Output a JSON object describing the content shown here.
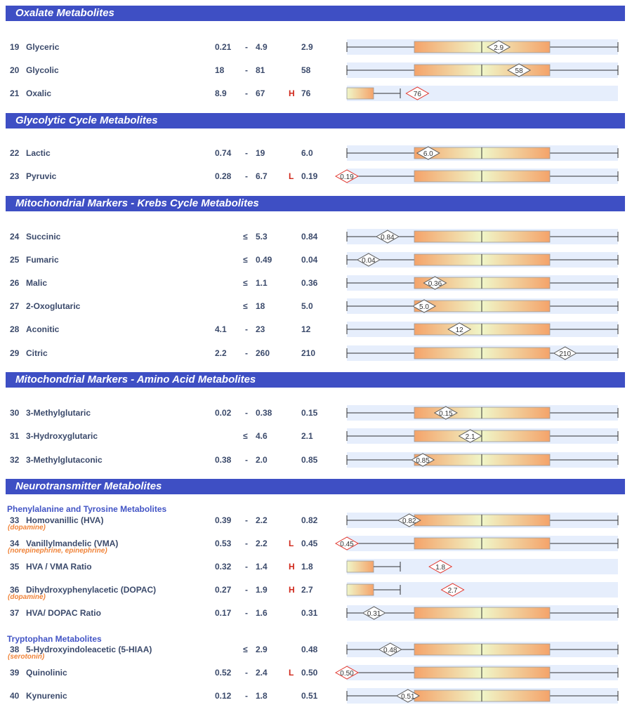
{
  "sections": [
    {
      "title": "Oxalate Metabolites",
      "rows": [
        {
          "num": "19",
          "name": "Glyceric",
          "low": "0.21",
          "sep": "-",
          "high": "4.9",
          "flag": "",
          "value": "2.9",
          "plot": {
            "whisker": "full",
            "val": 0.56
          }
        },
        {
          "num": "20",
          "name": "Glycolic",
          "low": "18",
          "sep": "-",
          "high": "81",
          "flag": "",
          "value": "58",
          "plot": {
            "whisker": "full",
            "val": 0.635
          }
        },
        {
          "num": "21",
          "name": "Oxalic",
          "low": "8.9",
          "sep": "-",
          "high": "67",
          "flag": "H",
          "value": "76",
          "plot": {
            "whisker": "high",
            "val": 0.26
          }
        }
      ]
    },
    {
      "title": "Glycolytic Cycle Metabolites",
      "rows": [
        {
          "num": "22",
          "name": "Lactic",
          "low": "0.74",
          "sep": "-",
          "high": "19",
          "flag": "",
          "value": "6.0",
          "plot": {
            "whisker": "full",
            "val": 0.3
          }
        },
        {
          "num": "23",
          "name": "Pyruvic",
          "low": "0.28",
          "sep": "-",
          "high": "6.7",
          "flag": "L",
          "value": "0.19",
          "plot": {
            "whisker": "full",
            "val": 0.0
          }
        }
      ]
    },
    {
      "title": "Mitochondrial Markers - Krebs Cycle Metabolites",
      "rows": [
        {
          "num": "24",
          "name": "Succinic",
          "low": "",
          "sep": "≤",
          "high": "5.3",
          "flag": "",
          "value": "0.84",
          "plot": {
            "whisker": "full",
            "val": 0.15
          }
        },
        {
          "num": "25",
          "name": "Fumaric",
          "low": "",
          "sep": "≤",
          "high": "0.49",
          "flag": "",
          "value": "0.04",
          "plot": {
            "whisker": "full",
            "val": 0.08
          }
        },
        {
          "num": "26",
          "name": "Malic",
          "low": "",
          "sep": "≤",
          "high": "1.1",
          "flag": "",
          "value": "0.36",
          "plot": {
            "whisker": "full",
            "val": 0.325
          }
        },
        {
          "num": "27",
          "name": "2-Oxoglutaric",
          "low": "",
          "sep": "≤",
          "high": "18",
          "flag": "",
          "value": "5.0",
          "plot": {
            "whisker": "full",
            "val": 0.285
          }
        },
        {
          "num": "28",
          "name": "Aconitic",
          "low": "4.1",
          "sep": "-",
          "high": "23",
          "flag": "",
          "value": "12",
          "plot": {
            "whisker": "full",
            "val": 0.415
          }
        },
        {
          "num": "29",
          "name": "Citric",
          "low": "2.2",
          "sep": "-",
          "high": "260",
          "flag": "",
          "value": "210",
          "plot": {
            "whisker": "full",
            "val": 0.805
          }
        }
      ]
    },
    {
      "title": "Mitochondrial Markers - Amino Acid Metabolites",
      "rows": [
        {
          "num": "30",
          "name": "3-Methylglutaric",
          "low": "0.02",
          "sep": "-",
          "high": "0.38",
          "flag": "",
          "value": "0.15",
          "plot": {
            "whisker": "full",
            "val": 0.365
          }
        },
        {
          "num": "31",
          "name": "3-Hydroxyglutaric",
          "low": "",
          "sep": "≤",
          "high": "4.6",
          "flag": "",
          "value": "2.1",
          "plot": {
            "whisker": "full",
            "val": 0.455
          }
        },
        {
          "num": "32",
          "name": "3-Methylglutaconic",
          "low": "0.38",
          "sep": "-",
          "high": "2.0",
          "flag": "",
          "value": "0.85",
          "plot": {
            "whisker": "full",
            "val": 0.28
          }
        }
      ]
    },
    {
      "title": "Neurotransmitter Metabolites",
      "subgroups": [
        {
          "title": "Phenylalanine and Tyrosine Metabolites",
          "rows": [
            {
              "num": "33",
              "name": "Homovanillic (HVA)",
              "note": "(dopamine)",
              "low": "0.39",
              "sep": "-",
              "high": "2.2",
              "flag": "",
              "value": "0.82",
              "plot": {
                "whisker": "full",
                "val": 0.23
              }
            },
            {
              "num": "34",
              "name": "Vanillylmandelic (VMA)",
              "note": "(norepinephrine, epinephrine)",
              "low": "0.53",
              "sep": "-",
              "high": "2.2",
              "flag": "L",
              "value": "0.45",
              "plot": {
                "whisker": "full",
                "val": 0.0
              }
            },
            {
              "num": "35",
              "name": "HVA / VMA Ratio",
              "low": "0.32",
              "sep": "-",
              "high": "1.4",
              "flag": "H",
              "value": "1.8",
              "plot": {
                "whisker": "high",
                "val": 0.345
              }
            },
            {
              "num": "36",
              "name": "Dihydroxyphenylacetic (DOPAC)",
              "note": "(dopamine)",
              "low": "0.27",
              "sep": "-",
              "high": "1.9",
              "flag": "H",
              "value": "2.7",
              "plot": {
                "whisker": "high",
                "val": 0.39
              }
            },
            {
              "num": "37",
              "name": "HVA/ DOPAC Ratio",
              "low": "0.17",
              "sep": "-",
              "high": "1.6",
              "flag": "",
              "value": "0.31",
              "plot": {
                "whisker": "full",
                "val": 0.1
              }
            }
          ]
        },
        {
          "title": "Tryptophan Metabolites",
          "rows": [
            {
              "num": "38",
              "name": "5-Hydroxyindoleacetic (5-HIAA)",
              "note": "(serotonin)",
              "low": "",
              "sep": "≤",
              "high": "2.9",
              "flag": "",
              "value": "0.48",
              "plot": {
                "whisker": "full",
                "val": 0.16
              }
            },
            {
              "num": "39",
              "name": "Quinolinic",
              "low": "0.52",
              "sep": "-",
              "high": "2.4",
              "flag": "L",
              "value": "0.50",
              "plot": {
                "whisker": "full",
                "val": 0.0
              }
            },
            {
              "num": "40",
              "name": "Kynurenic",
              "low": "0.12",
              "sep": "-",
              "high": "1.8",
              "flag": "",
              "value": "0.51",
              "plot": {
                "whisker": "full",
                "val": 0.225
              }
            }
          ]
        }
      ]
    }
  ],
  "colors": {
    "header_bg": "#3e4fc4",
    "row_band": "#e6eefc",
    "box_orange": "#f4a36a",
    "box_pale": "#f0f6c8",
    "marker_red": "#e0332a",
    "flag_red": "#d0281b",
    "note_orange": "#f0843a"
  }
}
